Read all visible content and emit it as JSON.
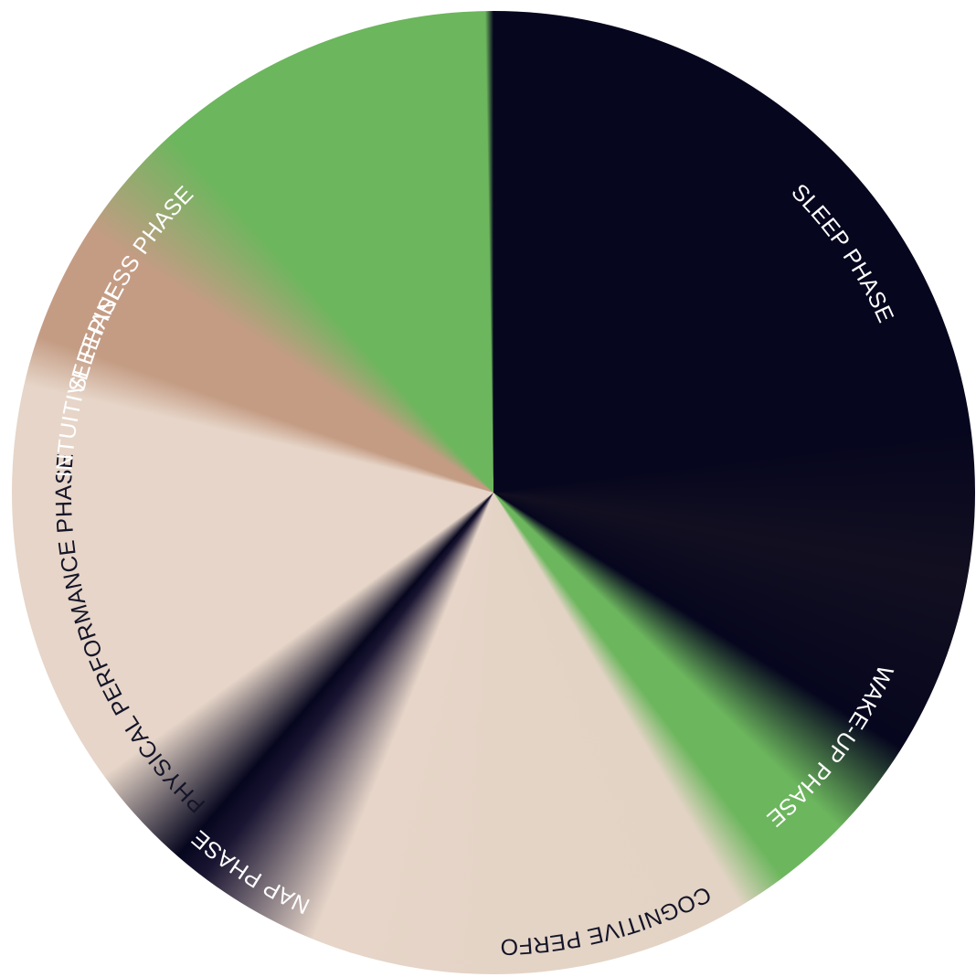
{
  "colors": {
    "night": "#06061e",
    "green": "#6cb65d",
    "tan": "#c49c84",
    "cream": "#e6d5c8",
    "label_light": "#ffffff",
    "label_dark": "#141428"
  },
  "phases": [
    {
      "key": "sleepiness",
      "label": "SLEEPINESS PHASE"
    },
    {
      "key": "sleep",
      "label": "SLEEP PHASE"
    },
    {
      "key": "wake_up",
      "label": "WAKE-UP PHASE"
    },
    {
      "key": "cognitive",
      "label": "COGNITIVE PERFORMANCE PHASE"
    },
    {
      "key": "nap",
      "label": "NAP PHASE"
    },
    {
      "key": "physical",
      "label": "PHYSICAL PERFORMANCE PHASE"
    },
    {
      "key": "intuitive",
      "label": "INTUITIVE PHASE"
    }
  ]
}
